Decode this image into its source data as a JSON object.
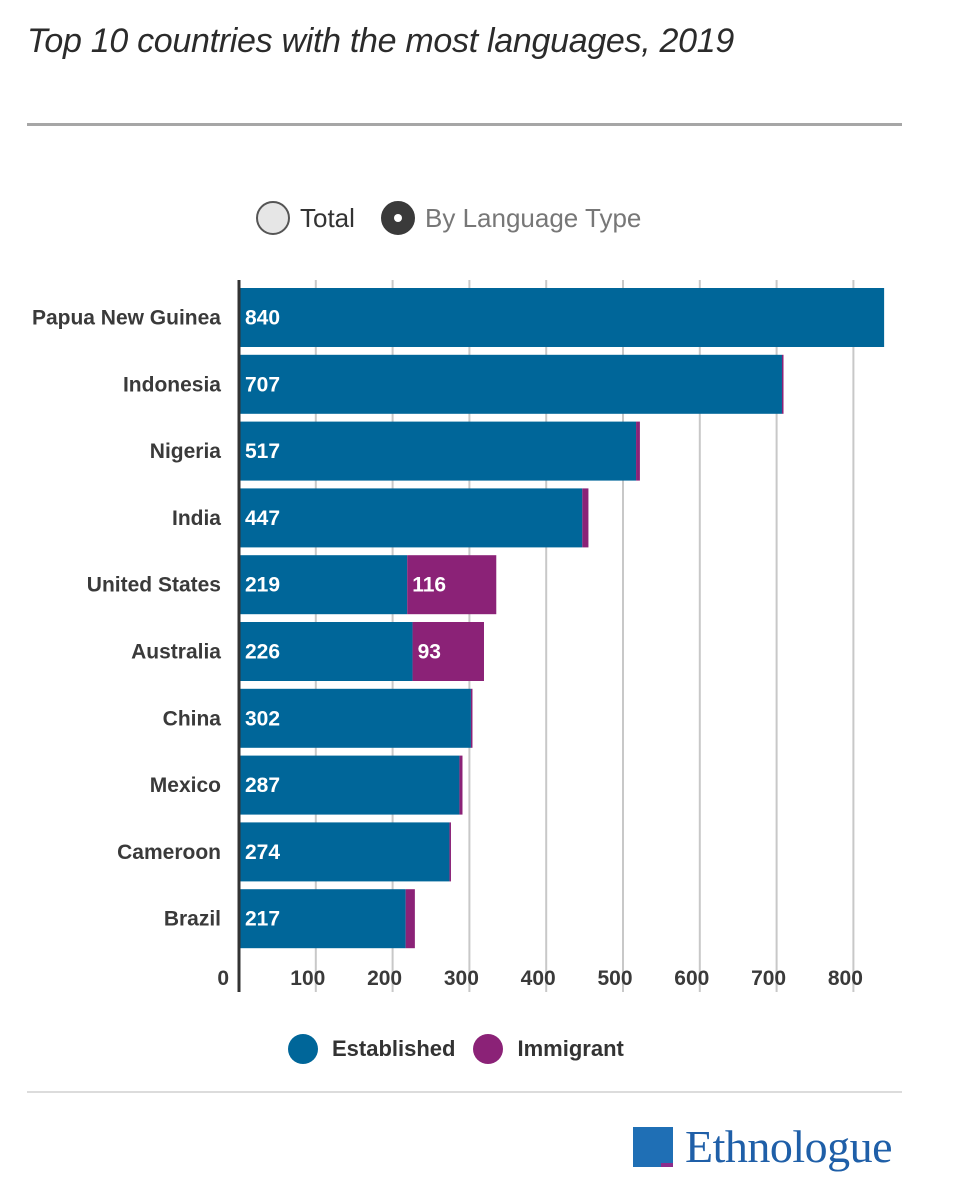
{
  "title": "Top 10 countries with the most languages, 2019",
  "toggle": {
    "total_label": "Total",
    "by_type_label": "By Language Type",
    "selected": "By Language Type"
  },
  "legend": {
    "established_label": "Established",
    "immigrant_label": "Immigrant"
  },
  "colors": {
    "established": "#006699",
    "immigrant": "#8b2277",
    "grid": "#c8c8c8",
    "axis": "#333333"
  },
  "brand": "Ethnologue",
  "chart_data": {
    "type": "bar",
    "orientation": "horizontal",
    "stacked": true,
    "title": "Top 10 countries with the most languages, 2019",
    "categories": [
      "Papua New Guinea",
      "Indonesia",
      "Nigeria",
      "India",
      "United States",
      "Australia",
      "China",
      "Mexico",
      "Cameroon",
      "Brazil"
    ],
    "series": [
      {
        "name": "Established",
        "values": [
          840,
          707,
          517,
          447,
          219,
          226,
          302,
          287,
          274,
          217
        ],
        "labels": [
          "840",
          "707",
          "517",
          "447",
          "219",
          "226",
          "302",
          "287",
          "274",
          "217"
        ]
      },
      {
        "name": "Immigrant",
        "values": [
          0,
          2,
          5,
          8,
          116,
          93,
          2,
          4,
          2,
          12
        ],
        "labels": [
          "",
          "",
          "",
          "",
          "116",
          "93",
          "",
          "",
          "",
          ""
        ]
      }
    ],
    "xlim": [
      0,
      850
    ],
    "xticks": [
      0,
      100,
      200,
      300,
      400,
      500,
      600,
      700,
      800
    ],
    "xlabel": "",
    "ylabel": "",
    "grid": true,
    "legend_position": "bottom"
  }
}
